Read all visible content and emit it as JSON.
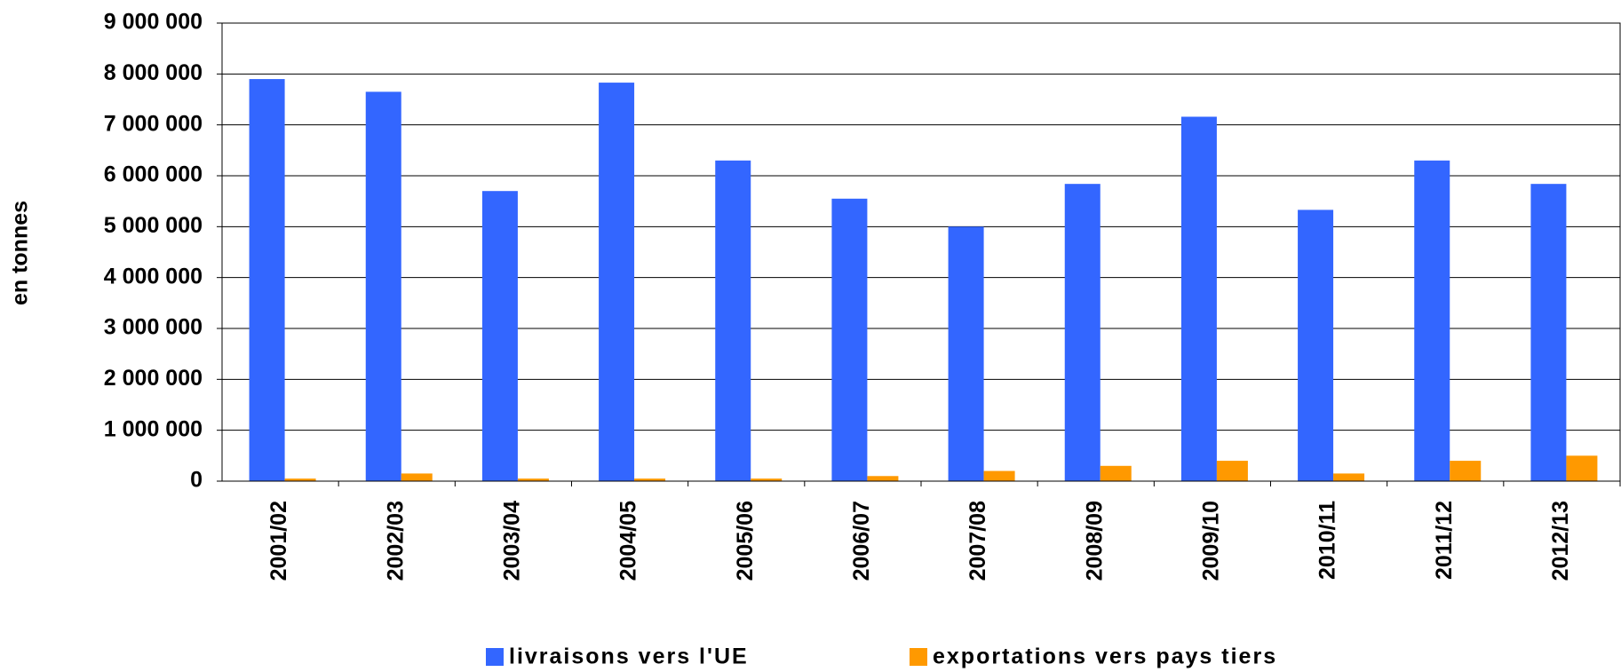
{
  "chart_data": {
    "type": "bar",
    "y_label": "en tonnes",
    "categories": [
      "2001/02",
      "2002/03",
      "2003/04",
      "2004/05",
      "2005/06",
      "2006/07",
      "2007/08",
      "2008/09",
      "2009/10",
      "2010/11",
      "2011/12",
      "2012/13"
    ],
    "series": [
      {
        "name": "livraisons vers l'UE",
        "color": "#3366ff",
        "values": [
          7900000,
          7650000,
          5700000,
          7830000,
          6300000,
          5550000,
          5000000,
          5840000,
          7160000,
          5330000,
          6300000,
          5840000
        ]
      },
      {
        "name": "exportations vers pays tiers",
        "color": "#ff9900",
        "values": [
          50000,
          150000,
          50000,
          50000,
          50000,
          100000,
          200000,
          300000,
          400000,
          150000,
          400000,
          500000
        ]
      }
    ],
    "ylim": [
      0,
      9000000
    ],
    "yticks": [
      {
        "value": 0,
        "label": "0"
      },
      {
        "value": 1000000,
        "label": "1 000 000"
      },
      {
        "value": 2000000,
        "label": "2 000 000"
      },
      {
        "value": 3000000,
        "label": "3 000 000"
      },
      {
        "value": 4000000,
        "label": "4 000 000"
      },
      {
        "value": 5000000,
        "label": "5 000 000"
      },
      {
        "value": 6000000,
        "label": "6 000 000"
      },
      {
        "value": 7000000,
        "label": "7 000 000"
      },
      {
        "value": 8000000,
        "label": "8 000 000"
      },
      {
        "value": 9000000,
        "label": "9 000 000"
      }
    ],
    "grid": true
  }
}
